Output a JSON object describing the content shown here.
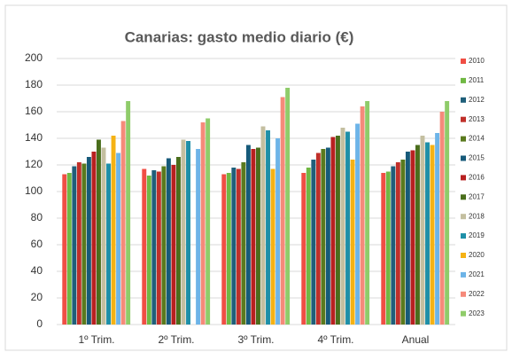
{
  "chart_data": {
    "type": "bar",
    "title": "Canarias: gasto medio diario (€)",
    "categories": [
      "1º Trim.",
      "2º Trim.",
      "3º Trim.",
      "4º Trim.",
      "Anual"
    ],
    "ylim": [
      0,
      200
    ],
    "yticks": [
      0,
      20,
      40,
      60,
      80,
      100,
      120,
      140,
      160,
      180,
      200
    ],
    "grid": true,
    "legend": "right",
    "series": [
      {
        "name": "2010",
        "color": "#f04e44",
        "values": [
          113,
          117,
          113,
          114,
          114
        ]
      },
      {
        "name": "2011",
        "color": "#70b843",
        "values": [
          114,
          112,
          114,
          118,
          115
        ]
      },
      {
        "name": "2012",
        "color": "#1f5f7a",
        "values": [
          119,
          116,
          118,
          124,
          119
        ]
      },
      {
        "name": "2013",
        "color": "#c0302a",
        "values": [
          122,
          115,
          117,
          129,
          122
        ]
      },
      {
        "name": "2014",
        "color": "#5a7a1e",
        "values": [
          121,
          119,
          122,
          132,
          124
        ]
      },
      {
        "name": "2015",
        "color": "#175a7a",
        "values": [
          126,
          125,
          135,
          133,
          130
        ]
      },
      {
        "name": "2016",
        "color": "#b82020",
        "values": [
          130,
          120,
          132,
          141,
          131
        ]
      },
      {
        "name": "2017",
        "color": "#4a6e1c",
        "values": [
          139,
          126,
          133,
          142,
          135
        ]
      },
      {
        "name": "2018",
        "color": "#c4bfa0",
        "values": [
          133,
          139,
          149,
          148,
          142
        ]
      },
      {
        "name": "2019",
        "color": "#1e8fa8",
        "values": [
          121,
          138,
          146,
          145,
          137
        ]
      },
      {
        "name": "2020",
        "color": "#f5b214",
        "values": [
          142,
          null,
          117,
          124,
          135
        ]
      },
      {
        "name": "2021",
        "color": "#6db4e8",
        "values": [
          129,
          132,
          140,
          151,
          144
        ]
      },
      {
        "name": "2022",
        "color": "#f58a7a",
        "values": [
          153,
          152,
          171,
          164,
          160
        ]
      },
      {
        "name": "2023",
        "color": "#8fcc6a",
        "values": [
          168,
          155,
          178,
          168,
          168
        ]
      }
    ]
  }
}
